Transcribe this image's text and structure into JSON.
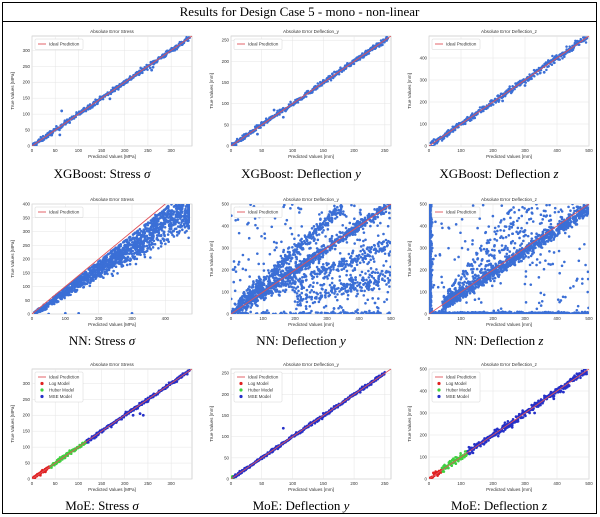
{
  "page_title": "Results for Design Case 5 - mono - non-linear",
  "colors": {
    "points": "#3b6fd6",
    "ideal": "#e0525a",
    "log": "#e02020",
    "huber": "#40d040",
    "mse": "#2530c8",
    "grid": "#e4e4e4"
  },
  "chart_data": [
    {
      "type": "scatter",
      "title": "Absolute Error Stress",
      "xlabel": "Predicted Values [MPa]",
      "ylabel": "True Values [MPa]",
      "caption": "XGBoost: Stress",
      "caption_symbol": "σ",
      "xlim": [
        0,
        345
      ],
      "ylim": [
        0,
        345
      ],
      "xticks": [
        0,
        50,
        100,
        150,
        200,
        250,
        300
      ],
      "yticks": [
        0,
        50,
        100,
        150,
        200,
        250,
        300
      ],
      "legend": [
        "Ideal Prediction"
      ],
      "legend_position": "top-left",
      "grid": true,
      "pattern": "tight",
      "spread": 4,
      "range": [
        0,
        340
      ],
      "points": [
        [
          60,
          35
        ],
        [
          64,
          110
        ],
        [
          233,
          228
        ],
        [
          258,
          238
        ],
        [
          261,
          247
        ],
        [
          237,
          232
        ],
        [
          168,
          148
        ],
        [
          121,
          126
        ],
        [
          40,
          35
        ],
        [
          300,
          300
        ]
      ]
    },
    {
      "type": "scatter",
      "title": "Absolute Error Deflection_y",
      "xlabel": "Predicted Values [mm]",
      "ylabel": "True Values [mm]",
      "caption": "XGBoost: Deflection",
      "caption_symbol": "y",
      "xlim": [
        0,
        260
      ],
      "ylim": [
        0,
        260
      ],
      "xticks": [
        0,
        50,
        100,
        150,
        200,
        250
      ],
      "yticks": [
        0,
        50,
        100,
        150,
        200,
        250
      ],
      "legend": [
        "Ideal Prediction"
      ],
      "legend_position": "top-left",
      "grid": true,
      "pattern": "tight",
      "spread": 3,
      "range": [
        0,
        255
      ],
      "points": [
        [
          85,
          68
        ],
        [
          43,
          28
        ],
        [
          70,
          85
        ],
        [
          150,
          155
        ]
      ]
    },
    {
      "type": "scatter",
      "title": "Absolute Error Deflection_z",
      "xlabel": "Predicted Values [mm]",
      "ylabel": "True Values [mm]",
      "caption": "XGBoost: Deflection",
      "caption_symbol": "z",
      "xlim": [
        0,
        500
      ],
      "ylim": [
        0,
        500
      ],
      "xticks": [
        0,
        100,
        200,
        300,
        400,
        500
      ],
      "yticks": [
        0,
        100,
        200,
        300,
        400
      ],
      "legend": [
        "Ideal Prediction"
      ],
      "legend_position": "top-left",
      "grid": true,
      "pattern": "tight",
      "spread": 8,
      "range": [
        0,
        495
      ],
      "points": [
        [
          230,
          205
        ],
        [
          300,
          275
        ],
        [
          360,
          335
        ]
      ]
    },
    {
      "type": "scatter",
      "title": "Absolute Error Stress",
      "xlabel": "Predicted Values [MPa]",
      "ylabel": "True Values [MPa]",
      "caption": "NN: Stress",
      "caption_symbol": "σ",
      "xlim": [
        0,
        480
      ],
      "ylim": [
        0,
        400
      ],
      "xticks": [
        0,
        100,
        200,
        300,
        400
      ],
      "yticks": [
        0,
        50,
        100,
        150,
        200,
        250,
        300,
        350,
        400
      ],
      "legend": [
        "Ideal Prediction"
      ],
      "legend_position": "top-left",
      "grid": true,
      "pattern": "cone",
      "range": [
        0,
        400
      ],
      "points": [
        [
          100,
          2
        ],
        [
          140,
          2
        ],
        [
          50,
          0
        ],
        [
          300,
          2
        ]
      ]
    },
    {
      "type": "scatter",
      "title": "Absolute Error Deflection_y",
      "xlabel": "Predicted Values [mm]",
      "ylabel": "True Values [mm]",
      "caption": "NN: Deflection",
      "caption_symbol": "y",
      "xlim": [
        0,
        500
      ],
      "ylim": [
        0,
        500
      ],
      "xticks": [
        0,
        100,
        200,
        300,
        400,
        500
      ],
      "yticks": [
        0,
        100,
        200,
        300,
        400,
        500
      ],
      "legend": [
        "Ideal Prediction"
      ],
      "legend_position": "top-left",
      "grid": true,
      "pattern": "multi",
      "range": [
        0,
        500
      ],
      "points": [
        [
          160,
          0
        ],
        [
          20,
          480
        ],
        [
          200,
          100
        ],
        [
          450,
          50
        ]
      ]
    },
    {
      "type": "scatter",
      "title": "Absolute Error Deflection_z",
      "xlabel": "Predicted Values [mm]",
      "ylabel": "True Values [mm]",
      "caption": "NN: Deflection",
      "caption_symbol": "z",
      "xlim": [
        0,
        500
      ],
      "ylim": [
        0,
        500
      ],
      "xticks": [
        0,
        100,
        200,
        300,
        400,
        500
      ],
      "yticks": [
        0,
        100,
        200,
        300,
        400,
        500
      ],
      "legend": [
        "Ideal Prediction"
      ],
      "legend_position": "top-left",
      "grid": true,
      "pattern": "nnz",
      "range": [
        0,
        500
      ],
      "points": [
        [
          10,
          300
        ],
        [
          10,
          200
        ],
        [
          20,
          450
        ],
        [
          300,
          380
        ]
      ]
    },
    {
      "type": "scatter",
      "title": "Absolute Error Stress",
      "xlabel": "Predicted Values [MPa]",
      "ylabel": "True Values [MPa]",
      "caption": "MoE: Stress",
      "caption_symbol": "σ",
      "xlim": [
        0,
        345
      ],
      "ylim": [
        0,
        345
      ],
      "xticks": [
        0,
        50,
        100,
        150,
        200,
        250,
        300
      ],
      "yticks": [
        0,
        50,
        100,
        150,
        200,
        250,
        300
      ],
      "legend": [
        "Ideal Prediction",
        "Log Model",
        "Huber Model",
        "MSE Model"
      ],
      "legend_position": "top-left",
      "grid": true,
      "pattern": "moe",
      "spread": 3,
      "segments": [
        [
          0,
          40
        ],
        [
          40,
          118
        ],
        [
          118,
          340
        ]
      ],
      "points": [
        [
          233,
          205
        ],
        [
          240,
          200
        ],
        [
          236,
          235
        ],
        [
          218,
          200
        ],
        [
          250,
          243
        ]
      ]
    },
    {
      "type": "scatter",
      "title": "Absolute Error Deflection_y",
      "xlabel": "Predicted Values [mm]",
      "ylabel": "True Values [mm]",
      "caption": "MoE: Deflection",
      "caption_symbol": "y",
      "xlim": [
        0,
        260
      ],
      "ylim": [
        0,
        260
      ],
      "xticks": [
        0,
        50,
        100,
        150,
        200,
        250
      ],
      "yticks": [
        0,
        50,
        100,
        150,
        200,
        250
      ],
      "legend": [
        "Ideal Prediction",
        "Log Model",
        "Huber Model",
        "MSE Model"
      ],
      "legend_position": "top-left",
      "grid": true,
      "pattern": "moe",
      "spread": 2,
      "segments": [
        [
          0,
          2
        ],
        [
          2,
          4
        ],
        [
          4,
          250
        ]
      ],
      "points": [
        [
          85,
          120
        ],
        [
          150,
          155
        ],
        [
          210,
          205
        ]
      ]
    },
    {
      "type": "scatter",
      "title": "Absolute Error Deflection_z",
      "xlabel": "Predicted Values [mm]",
      "ylabel": "True Values [mm]",
      "caption": "MoE: Deflection",
      "caption_symbol": "z",
      "xlim": [
        0,
        500
      ],
      "ylim": [
        0,
        500
      ],
      "xticks": [
        0,
        100,
        200,
        300,
        400,
        500
      ],
      "yticks": [
        0,
        100,
        200,
        300,
        400,
        500
      ],
      "legend": [
        "Ideal Prediction",
        "Log Model",
        "Huber Model",
        "MSE Model"
      ],
      "legend_position": "top-left",
      "grid": true,
      "pattern": "moe",
      "spread": 8,
      "segments": [
        [
          0,
          40
        ],
        [
          40,
          120
        ],
        [
          120,
          495
        ]
      ],
      "points": [
        [
          260,
          235
        ],
        [
          330,
          300
        ],
        [
          420,
          395
        ],
        [
          390,
          365
        ]
      ]
    }
  ]
}
